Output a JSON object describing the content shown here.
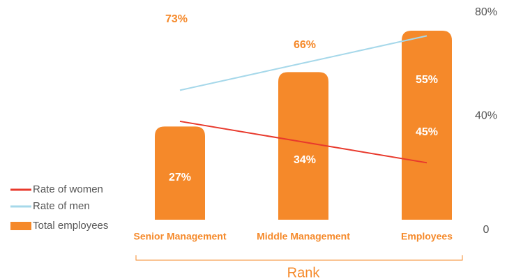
{
  "chart_data": {
    "type": "bar_line",
    "categories": [
      "Senior Management",
      "Middle Management",
      "Employees"
    ],
    "x_label": "Rank",
    "ylim": [
      0,
      80
    ],
    "yticks": [
      0,
      {
        "value": 40,
        "label": "40%"
      },
      {
        "value": 80,
        "label": "80%"
      }
    ],
    "series": [
      {
        "name": "Rate of women",
        "type": "line",
        "color": "#e8392c",
        "values": [
          38,
          30,
          22
        ]
      },
      {
        "name": "Rate of men",
        "type": "line",
        "color": "#a6d8ea",
        "values": [
          50,
          60.5,
          71
        ]
      },
      {
        "name": "Total employees",
        "type": "bar",
        "color": "#f5892a",
        "values": [
          36,
          57,
          73
        ]
      }
    ],
    "annotations": [
      "73%",
      "66%",
      "55%",
      "27%",
      "34%",
      "45%"
    ]
  }
}
